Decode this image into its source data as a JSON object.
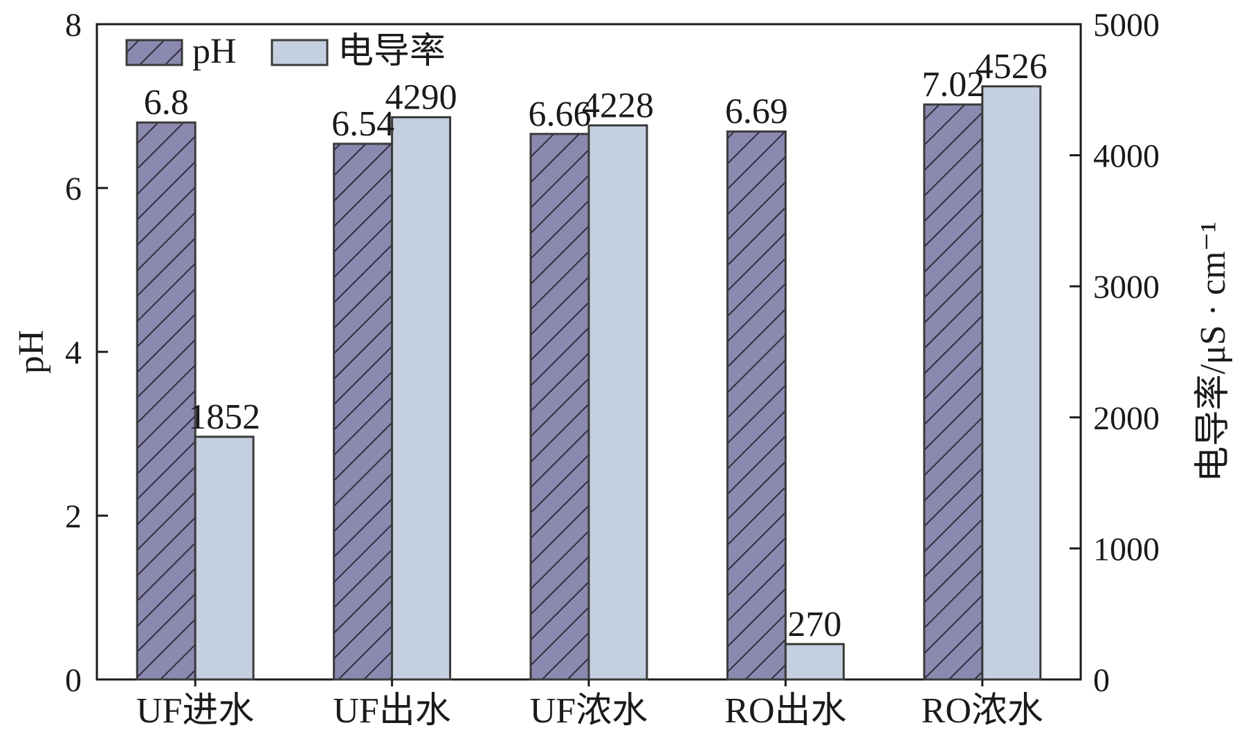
{
  "chart_data": {
    "type": "bar",
    "categories": [
      "UF进水",
      "UF出水",
      "UF浓水",
      "RO出水",
      "RO浓水"
    ],
    "series": [
      {
        "name": "pH",
        "axis": "left",
        "values": [
          6.8,
          6.54,
          6.66,
          6.69,
          7.02
        ],
        "labels": [
          "6.8",
          "6.54",
          "6.66",
          "6.69",
          "7.02"
        ],
        "color": "#8b89b0",
        "pattern": "diagonal-hatch"
      },
      {
        "name": "电导率",
        "axis": "right",
        "values": [
          1852,
          4290,
          4228,
          270,
          4526
        ],
        "labels": [
          "1852",
          "4290",
          "4228",
          "270",
          "4526"
        ],
        "color": "#c4cfe0",
        "pattern": "solid"
      }
    ],
    "ylabel": "pH",
    "ylabel_right": "电导率/μS · cm⁻¹",
    "ylim": [
      0,
      8
    ],
    "ylim_right": [
      0,
      5000
    ],
    "yticks": [
      0,
      2,
      4,
      6,
      8
    ],
    "yticks_right": [
      0,
      1000,
      2000,
      3000,
      4000,
      5000
    ],
    "legend_position": "top-left",
    "grid": false
  }
}
